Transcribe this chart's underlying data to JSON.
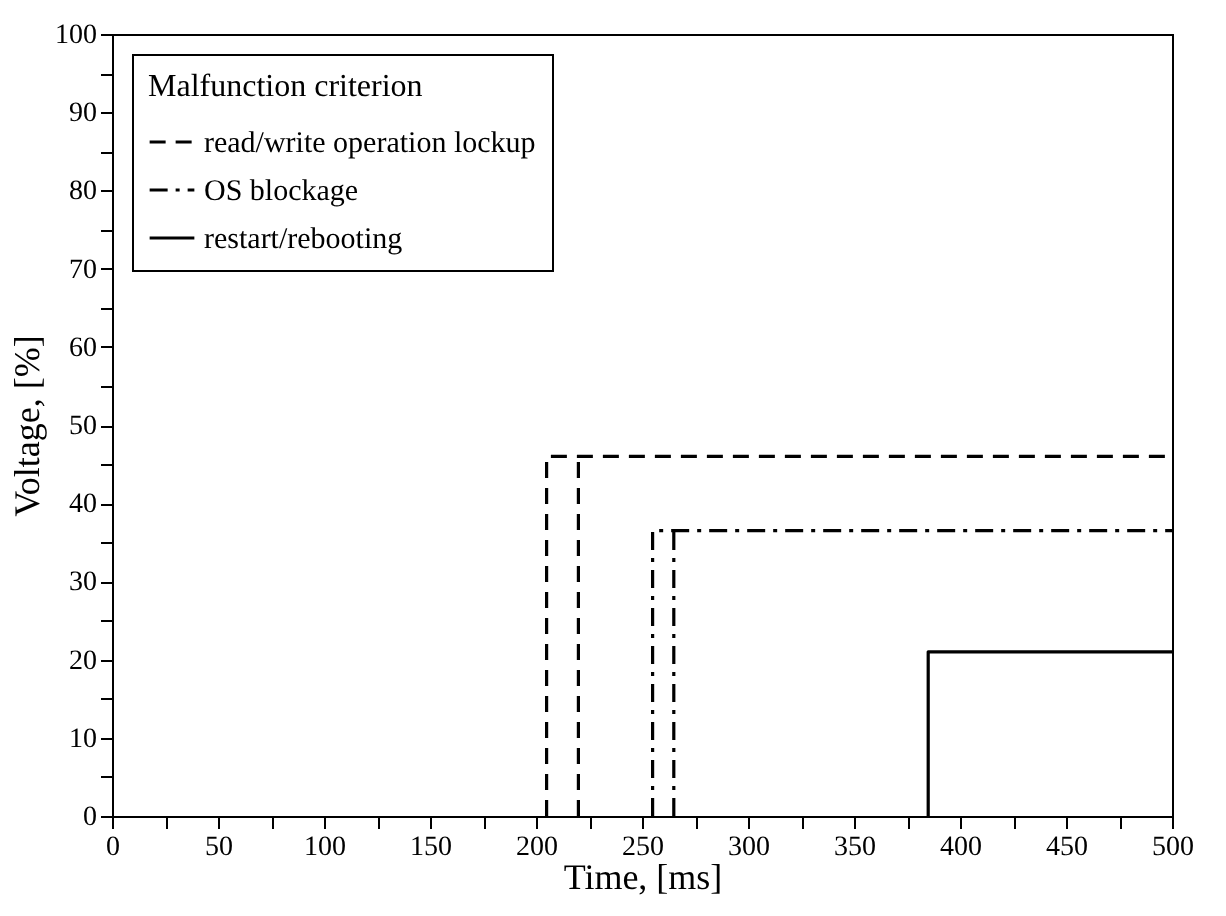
{
  "chart_data": {
    "type": "line",
    "xlabel": "Time, [ms]",
    "ylabel": "Voltage, [%]",
    "legend_title": "Malfunction criterion",
    "legend": "top left",
    "grid": false,
    "marker": "none",
    "xlim": [
      0,
      500
    ],
    "ylim": [
      0,
      100
    ],
    "xticks": [
      0,
      {
        "value": 25,
        "label": null
      },
      50,
      {
        "value": 75,
        "label": null
      },
      100,
      {
        "value": 125,
        "label": null
      },
      150,
      {
        "value": 175,
        "label": null
      },
      200,
      {
        "value": 225,
        "label": null
      },
      250,
      {
        "value": 275,
        "label": null
      },
      300,
      {
        "value": 325,
        "label": null
      },
      350,
      {
        "value": 375,
        "label": null
      },
      400,
      {
        "value": 425,
        "label": null
      },
      450,
      {
        "value": 475,
        "label": null
      },
      500
    ],
    "yticks": [
      0,
      {
        "value": 5,
        "label": null
      },
      10,
      {
        "value": 15,
        "label": null
      },
      20,
      {
        "value": 25,
        "label": null
      },
      30,
      {
        "value": 35,
        "label": null
      },
      40,
      {
        "value": 45,
        "label": null
      },
      50,
      {
        "value": 55,
        "label": null
      },
      60,
      {
        "value": 65,
        "label": null
      },
      70,
      {
        "value": 75,
        "label": null
      },
      80,
      {
        "value": 85,
        "label": null
      },
      90,
      {
        "value": 95,
        "label": null
      },
      100
    ],
    "series": [
      {
        "name": "read/write operation lockup",
        "color": "#000000",
        "line_style": "dashed",
        "x": [
          205,
          205,
          500,
          null,
          220,
          220
        ],
        "values": [
          0,
          46,
          46,
          null,
          0,
          46
        ]
      },
      {
        "name": "OS blockage",
        "color": "#000000",
        "line_style": "dashdot",
        "x": [
          255,
          255,
          500,
          null,
          265,
          265
        ],
        "values": [
          0,
          36.5,
          36.5,
          null,
          0,
          36.5
        ]
      },
      {
        "name": "restart/rebooting",
        "color": "#000000",
        "line_style": "solid",
        "x": [
          385,
          385,
          500
        ],
        "values": [
          0,
          21,
          21
        ]
      }
    ]
  }
}
